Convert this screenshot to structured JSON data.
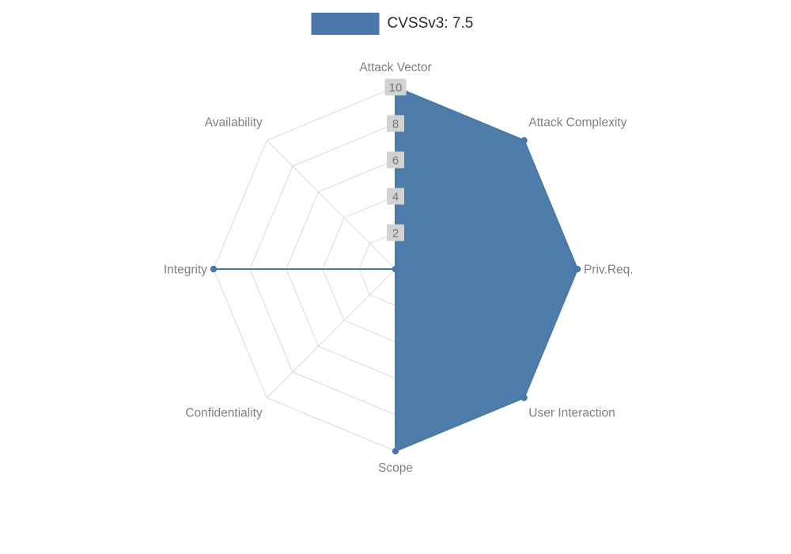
{
  "legend": {
    "label": "CVSSv3: 7.5"
  },
  "colors": {
    "series": "#4878a8",
    "grid": "#d9d9d9",
    "axis_label": "#7f7f7f",
    "tick_text": "#767676",
    "tick_box": "#d2d2d2",
    "legend_text": "#2b2b2b",
    "background": "#ffffff"
  },
  "chart_data": {
    "type": "radar",
    "title": "CVSSv3: 7.5",
    "categories": [
      "Attack Vector",
      "Attack Complexity",
      "Priv.Req.",
      "User Interaction",
      "Scope",
      "Confidentiality",
      "Integrity",
      "Availability"
    ],
    "series": [
      {
        "name": "CVSSv3: 7.5",
        "color": "#4878a8",
        "values": [
          10,
          10,
          10,
          10,
          10,
          0,
          10,
          0
        ]
      }
    ],
    "ticks": [
      2,
      4,
      6,
      8,
      10
    ],
    "rmax": 10,
    "grid": true,
    "legend_position": "top"
  }
}
